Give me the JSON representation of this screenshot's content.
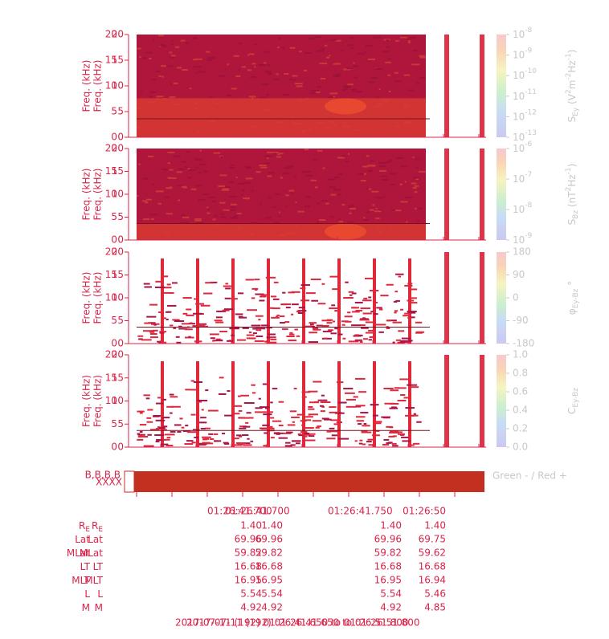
{
  "panels": [
    {
      "y_label": "Freq. (kHz)",
      "yticks": [
        "0",
        "5",
        "10",
        "15",
        "20"
      ],
      "style": "dense-power-ey",
      "cbar_ticks": [
        {
          "base": "10",
          "exp": "-8"
        },
        {
          "base": "10",
          "exp": "-9"
        },
        {
          "base": "10",
          "exp": "-10"
        },
        {
          "base": "10",
          "exp": "-11"
        },
        {
          "base": "10",
          "exp": "-12"
        },
        {
          "base": "10",
          "exp": "-13"
        }
      ],
      "cbar_label": [
        {
          "t": "S"
        },
        {
          "t": "Ey",
          "s": "sub"
        },
        {
          "t": " (V"
        },
        {
          "t": "2",
          "s": "sup"
        },
        {
          "t": "m"
        },
        {
          "t": "-2",
          "s": "sup"
        },
        {
          "t": "Hz"
        },
        {
          "t": "-1",
          "s": "sup"
        },
        {
          "t": ")"
        }
      ]
    },
    {
      "y_label": "Freq. (kHz)",
      "yticks": [
        "0",
        "5",
        "10",
        "15",
        "20"
      ],
      "style": "dense-power-bz",
      "cbar_ticks": [
        {
          "base": "10",
          "exp": "-6"
        },
        {
          "base": "10",
          "exp": "-7"
        },
        {
          "base": "10",
          "exp": "-8"
        },
        {
          "base": "10",
          "exp": "-9"
        }
      ],
      "cbar_label": [
        {
          "t": "S"
        },
        {
          "t": "Bz",
          "s": "sub"
        },
        {
          "t": " (nT"
        },
        {
          "t": "2",
          "s": "sup"
        },
        {
          "t": "Hz"
        },
        {
          "t": "-1",
          "s": "sup"
        },
        {
          "t": ")"
        }
      ]
    },
    {
      "y_label": "Freq. (kHz)",
      "yticks": [
        "0",
        "5",
        "10",
        "15",
        "20"
      ],
      "style": "sparse",
      "cbar_ticks": [
        "180",
        "90",
        "0",
        "-90",
        "-180"
      ],
      "cbar_label": [
        {
          "t": "φ"
        },
        {
          "t": "Ey-Bz",
          "s": "sub"
        },
        {
          "t": " °"
        }
      ]
    },
    {
      "y_label": "Freq. (kHz)",
      "yticks": [
        "0",
        "5",
        "10",
        "15",
        "20"
      ],
      "style": "sparse",
      "cbar_ticks": [
        "1.0",
        "0.8",
        "0.6",
        "0.4",
        "0.2",
        "0.0"
      ],
      "cbar_label": [
        {
          "t": "C"
        },
        {
          "t": "Ey-Bz",
          "s": "sub"
        }
      ]
    }
  ],
  "status_bar": {
    "left_label": "B,B,B,B",
    "marks": "XXXX",
    "right_label": "Green - / Red +"
  },
  "ephemeris": {
    "header": [
      "01:26:41.700",
      "01:26:41.700",
      "01:26:41.750",
      "01:26:50"
    ],
    "rows": [
      {
        "label": "R",
        "sub": "E",
        "values": [
          "1.40",
          "1.40",
          "1.40",
          "1.40"
        ]
      },
      {
        "label": "Lat",
        "values": [
          "69.96",
          "69.96",
          "69.96",
          "69.75"
        ]
      },
      {
        "label": "MLat",
        "values": [
          "59.82",
          "59.82",
          "59.82",
          "59.62"
        ]
      },
      {
        "label": "LT",
        "values": [
          "16.68",
          "16.68",
          "16.68",
          "16.68"
        ]
      },
      {
        "label": "MLT",
        "values": [
          "16.95",
          "16.95",
          "16.95",
          "16.94"
        ]
      },
      {
        "label": "L",
        "values": [
          "5.54",
          "5.54",
          "5.54",
          "5.46"
        ]
      },
      {
        "label": "M",
        "values": [
          "4.92",
          "4.92",
          "4.92",
          "4.85"
        ]
      }
    ]
  },
  "footer": "2017-07-11 (192) 01:26:41.650 to 01:26:51.800"
}
